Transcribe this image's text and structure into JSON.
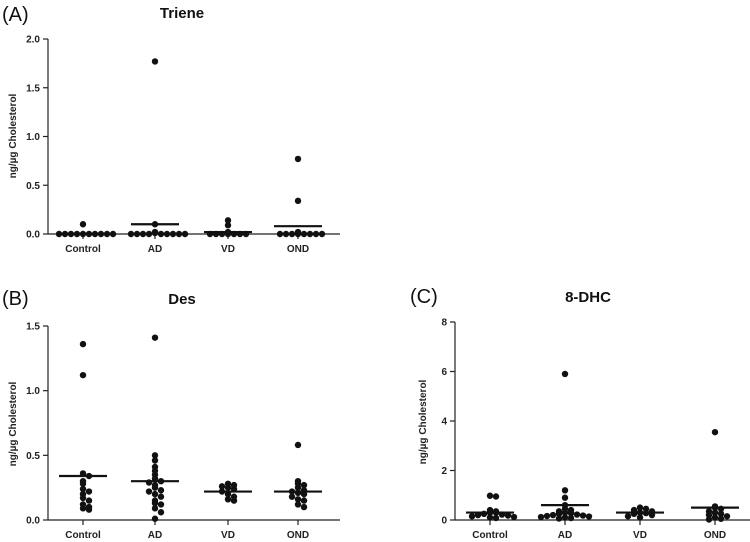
{
  "chart_data": [
    {
      "panel_label": "(A)",
      "type": "scatter",
      "title": "Triene",
      "ylabel": "ng/µg  Cholesterol",
      "categories": [
        "Control",
        "AD",
        "VD",
        "OND"
      ],
      "ylim": [
        0,
        2.0
      ],
      "yticks": [
        "0.0",
        "0.5",
        "1.0",
        "1.5",
        "2.0"
      ],
      "means": [
        0.0,
        0.1,
        0.02,
        0.08
      ],
      "points": [
        [
          0.1,
          0,
          0,
          0,
          0,
          0,
          0,
          0,
          0,
          0,
          0
        ],
        [
          1.77,
          0.1,
          0.01,
          0.02,
          0,
          0,
          0,
          0,
          0,
          0,
          0,
          0,
          0
        ],
        [
          0.14,
          0.09,
          0.02,
          0,
          0,
          0,
          0,
          0,
          0,
          0
        ],
        [
          0.77,
          0.34,
          0.02,
          0,
          0,
          0,
          0,
          0,
          0,
          0,
          0
        ]
      ]
    },
    {
      "panel_label": "(B)",
      "type": "scatter",
      "title": "Des",
      "ylabel": "ng/µg  Cholesterol",
      "categories": [
        "Control",
        "AD",
        "VD",
        "OND"
      ],
      "ylim": [
        0,
        1.5
      ],
      "yticks": [
        "0.0",
        "0.5",
        "1.0",
        "1.5"
      ],
      "means": [
        0.34,
        0.3,
        0.22,
        0.22
      ],
      "points": [
        [
          1.36,
          1.12,
          0.36,
          0.34,
          0.3,
          0.28,
          0.24,
          0.22,
          0.2,
          0.17,
          0.15,
          0.12,
          0.1,
          0.09,
          0.08
        ],
        [
          1.41,
          0.5,
          0.46,
          0.41,
          0.38,
          0.35,
          0.32,
          0.3,
          0.29,
          0.27,
          0.25,
          0.23,
          0.22,
          0.2,
          0.18,
          0.15,
          0.13,
          0.12,
          0.09,
          0.06,
          0.01
        ],
        [
          0.28,
          0.27,
          0.26,
          0.25,
          0.24,
          0.22,
          0.2,
          0.18,
          0.16,
          0.15
        ],
        [
          0.58,
          0.3,
          0.28,
          0.27,
          0.25,
          0.23,
          0.22,
          0.21,
          0.2,
          0.18,
          0.16,
          0.15,
          0.12,
          0.1
        ]
      ]
    },
    {
      "panel_label": "(C)",
      "type": "scatter",
      "title": "8-DHC",
      "ylabel": "ng/µg  Cholesterol",
      "categories": [
        "Control",
        "AD",
        "VD",
        "OND"
      ],
      "ylim": [
        0,
        8
      ],
      "yticks": [
        "0",
        "2",
        "4",
        "6",
        "8"
      ],
      "means": [
        0.3,
        0.6,
        0.3,
        0.5
      ],
      "points": [
        [
          0.98,
          0.95,
          0.4,
          0.35,
          0.3,
          0.3,
          0.25,
          0.22,
          0.2,
          0.18,
          0.15,
          0.12,
          0.1,
          0.08
        ],
        [
          5.9,
          1.2,
          0.9,
          0.6,
          0.45,
          0.4,
          0.35,
          0.3,
          0.28,
          0.25,
          0.22,
          0.2,
          0.18,
          0.16,
          0.14,
          0.12,
          0.1,
          0.08,
          0.06
        ],
        [
          0.5,
          0.45,
          0.4,
          0.35,
          0.3,
          0.28,
          0.25,
          0.2,
          0.15,
          0.1
        ],
        [
          3.55,
          0.55,
          0.5,
          0.45,
          0.35,
          0.3,
          0.25,
          0.2,
          0.15,
          0.1,
          0.05,
          0.02
        ]
      ]
    }
  ]
}
